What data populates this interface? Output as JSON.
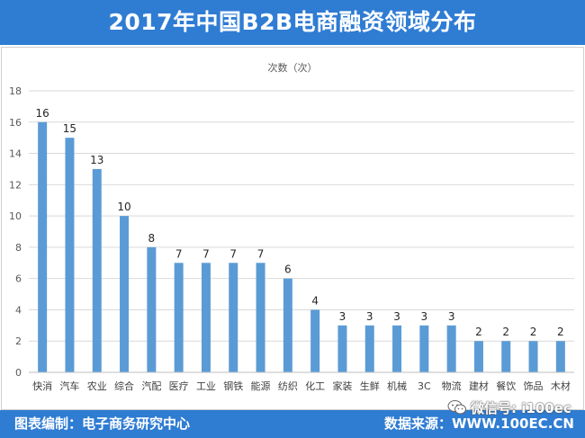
{
  "title": "2017年中国B2B电商融资领域分布",
  "colors": {
    "header": "#2f7cd3",
    "bar": "#5b9bd5",
    "grid": "#d9d9d9"
  },
  "chart_data": {
    "type": "bar",
    "title": "2017年中国B2B电商融资领域分布",
    "ylabel": "次数（次）",
    "xlabel": "",
    "categories": [
      "快消",
      "汽车",
      "农业",
      "综合",
      "汽配",
      "医疗",
      "工业",
      "钢铁",
      "能源",
      "纺织",
      "化工",
      "家装",
      "生鲜",
      "机械",
      "3C",
      "物流",
      "建材",
      "餐饮",
      "饰品",
      "木材"
    ],
    "values": [
      16,
      15,
      13,
      10,
      8,
      7,
      7,
      7,
      7,
      6,
      4,
      3,
      3,
      3,
      3,
      3,
      2,
      2,
      2,
      2
    ],
    "ylim": [
      0,
      18
    ],
    "yticks": [
      0,
      2,
      4,
      6,
      8,
      10,
      12,
      14,
      16,
      18
    ],
    "grid": true,
    "data_labels": true
  },
  "footer": {
    "compiler_label": "图表编制：",
    "compiler": "电子商务研究中心",
    "source_label": "数据来源：",
    "source": "WWW.100EC.CN"
  },
  "watermark": {
    "icon": "wechat-icon",
    "text": "微信号: i100ec"
  }
}
